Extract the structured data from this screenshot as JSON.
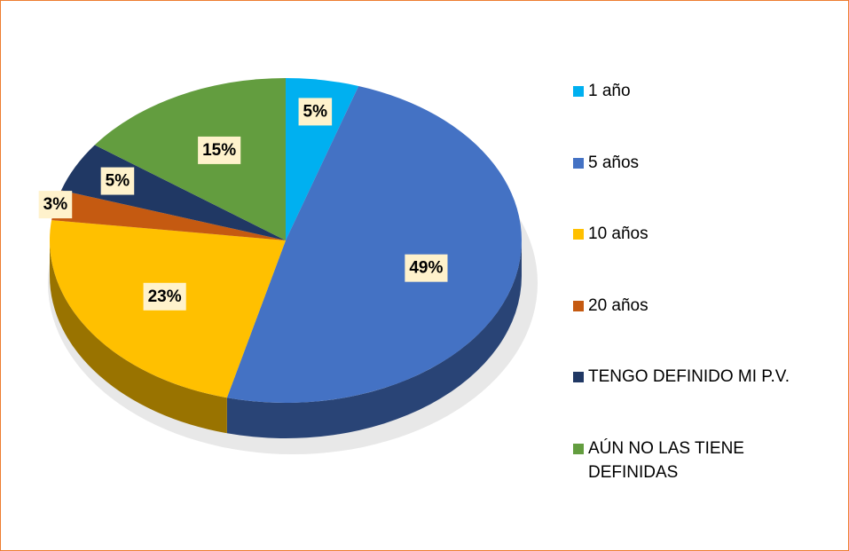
{
  "chart_data": {
    "type": "pie",
    "categories": [
      "1 año",
      "5 años",
      "10 años",
      "20 años",
      "TENGO DEFINIDO MI P.V.",
      "AÚN NO LAS TIENE DEFINIDAS"
    ],
    "values": [
      5,
      49,
      23,
      3,
      5,
      15
    ],
    "value_labels": [
      "5%",
      "49%",
      "23%",
      "3%",
      "5%",
      "15%"
    ],
    "colors": [
      "#00b0f0",
      "#4472c4",
      "#ffc000",
      "#c55a11",
      "#203864",
      "#639d3f"
    ],
    "legend": "right"
  }
}
